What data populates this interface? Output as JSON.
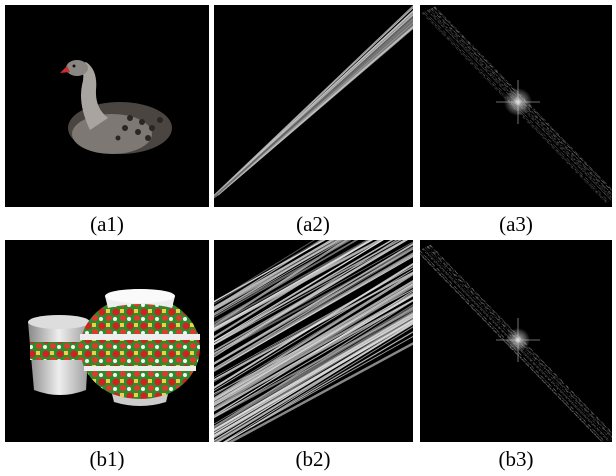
{
  "figure": {
    "panels": [
      {
        "label": "(a1)"
      },
      {
        "label": "(a2)"
      },
      {
        "label": "(a3)"
      },
      {
        "label": "(b1)"
      },
      {
        "label": "(b2)"
      },
      {
        "label": "(b3)"
      }
    ]
  }
}
